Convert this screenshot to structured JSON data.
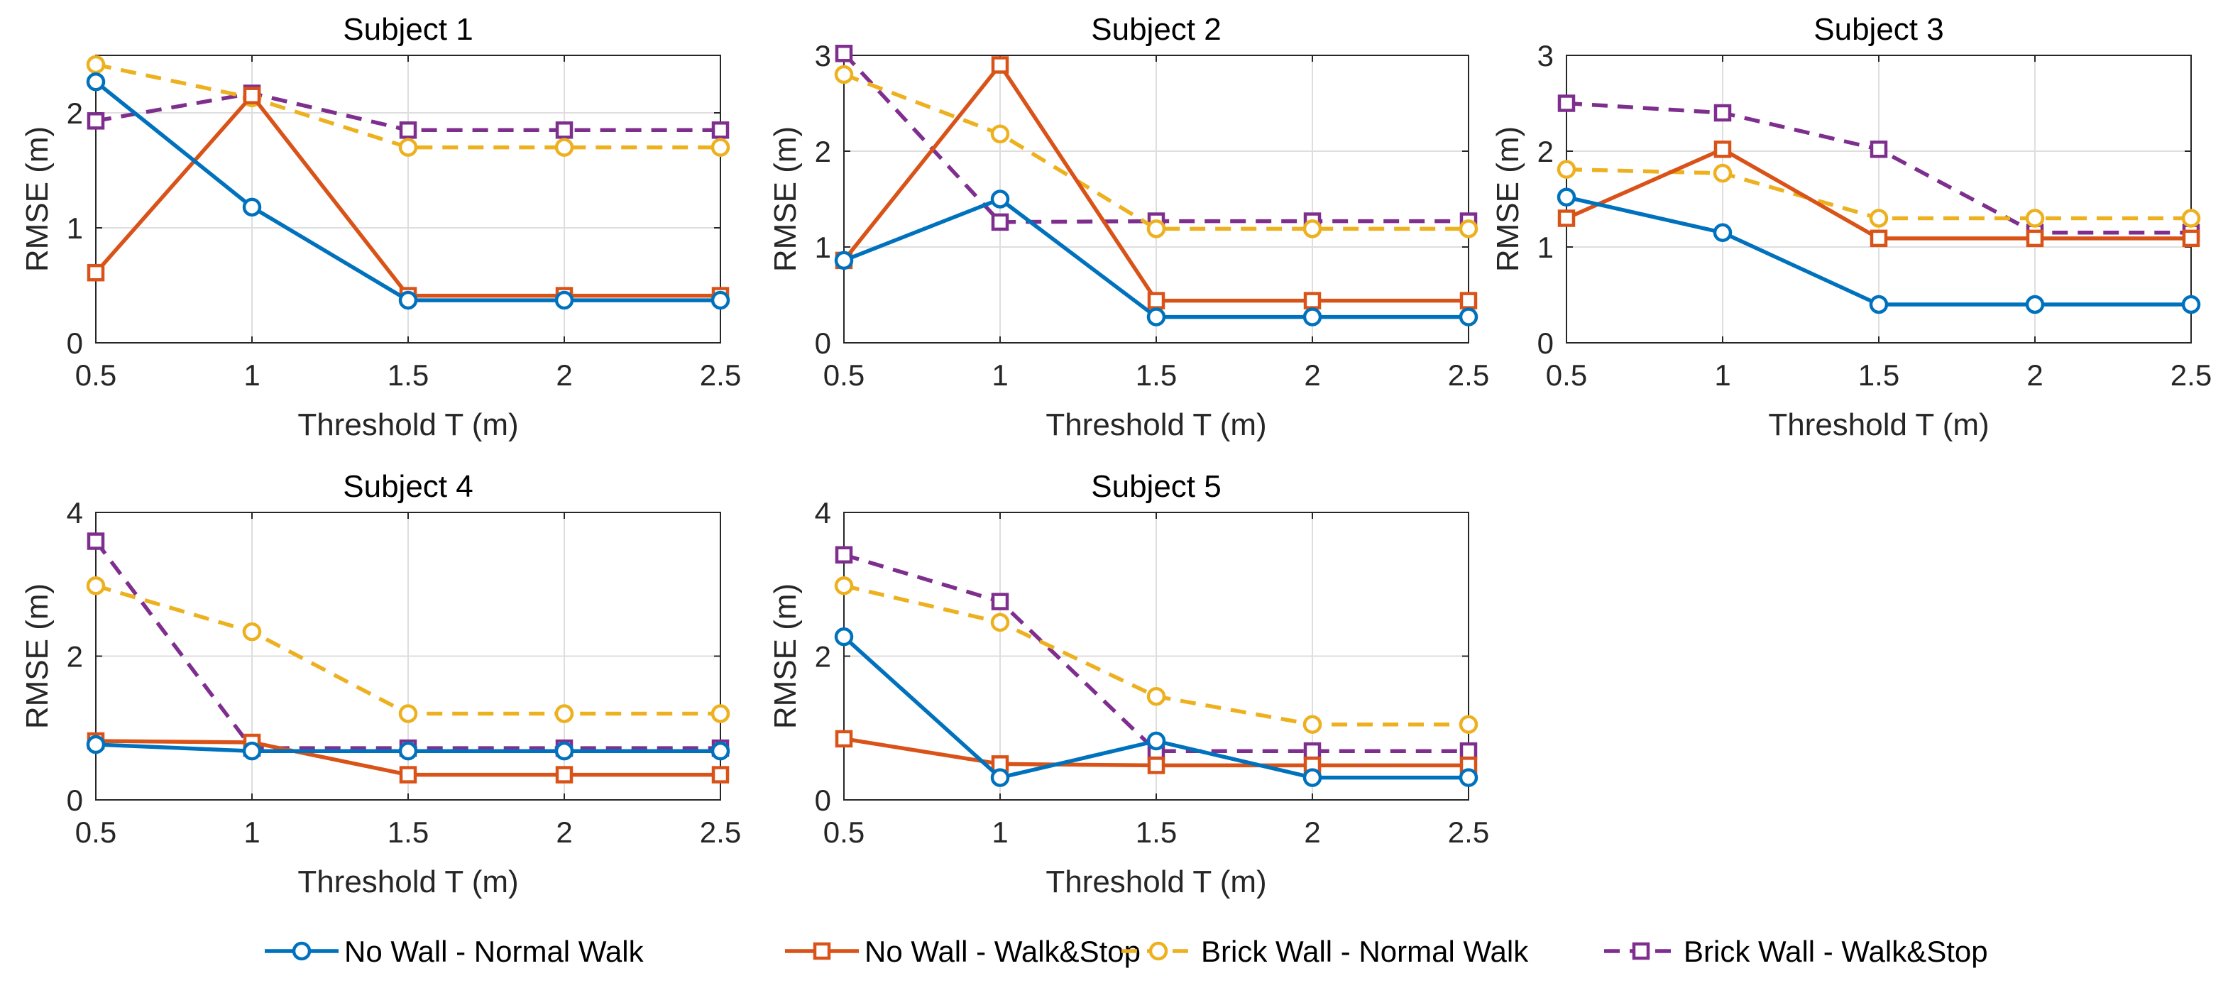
{
  "chart_data": {
    "type": "line",
    "x": [
      0.5,
      1,
      1.5,
      2,
      2.5
    ],
    "xlabel": "Threshold T (m)",
    "ylabel": "RMSE (m)",
    "xlim": [
      0.5,
      2.5
    ],
    "xticks": [
      0.5,
      1,
      1.5,
      2,
      2.5
    ],
    "xtick_labels": [
      "0.5",
      "1",
      "1.5",
      "2",
      "2.5"
    ],
    "grid": true,
    "legend_position": "bottom-center",
    "legend": [
      {
        "name": "No Wall - Normal Walk",
        "color": "#0072BD",
        "dash": "solid",
        "marker": "circle"
      },
      {
        "name": "No Wall - Walk&Stop",
        "color": "#D95319",
        "dash": "solid",
        "marker": "square"
      },
      {
        "name": "Brick Wall - Normal Walk",
        "color": "#EDB120",
        "dash": "dashed",
        "marker": "circle"
      },
      {
        "name": "Brick Wall - Walk&Stop",
        "color": "#7E2F8E",
        "dash": "dashed",
        "marker": "square"
      }
    ],
    "subplots": [
      {
        "title": "Subject 1",
        "ylim": [
          0,
          2.5
        ],
        "yticks": [
          0,
          1,
          2
        ],
        "ytick_labels": [
          "0",
          "1",
          "2"
        ],
        "series": [
          {
            "name": "No Wall - Normal Walk",
            "values": [
              2.27,
              1.18,
              0.37,
              0.37,
              0.37
            ]
          },
          {
            "name": "No Wall - Walk&Stop",
            "values": [
              0.61,
              2.15,
              0.41,
              0.41,
              0.41
            ]
          },
          {
            "name": "Brick Wall - Normal Walk",
            "values": [
              2.42,
              2.13,
              1.7,
              1.7,
              1.7
            ]
          },
          {
            "name": "Brick Wall - Walk&Stop",
            "values": [
              1.93,
              2.17,
              1.85,
              1.85,
              1.85
            ]
          }
        ]
      },
      {
        "title": "Subject 2",
        "ylim": [
          0,
          3
        ],
        "yticks": [
          0,
          1,
          2,
          3
        ],
        "ytick_labels": [
          "0",
          "1",
          "2",
          "3"
        ],
        "series": [
          {
            "name": "No Wall - Normal Walk",
            "values": [
              0.86,
              1.5,
              0.27,
              0.27,
              0.27
            ]
          },
          {
            "name": "No Wall - Walk&Stop",
            "values": [
              0.86,
              2.9,
              0.44,
              0.44,
              0.44
            ]
          },
          {
            "name": "Brick Wall - Normal Walk",
            "values": [
              2.8,
              2.18,
              1.19,
              1.19,
              1.19
            ]
          },
          {
            "name": "Brick Wall - Walk&Stop",
            "values": [
              3.02,
              1.26,
              1.27,
              1.27,
              1.27
            ]
          }
        ]
      },
      {
        "title": "Subject 3",
        "ylim": [
          0,
          3
        ],
        "yticks": [
          0,
          1,
          2,
          3
        ],
        "ytick_labels": [
          "0",
          "1",
          "2",
          "3"
        ],
        "series": [
          {
            "name": "No Wall - Normal Walk",
            "values": [
              1.52,
              1.15,
              0.4,
              0.4,
              0.4
            ]
          },
          {
            "name": "No Wall - Walk&Stop",
            "values": [
              1.3,
              2.02,
              1.09,
              1.09,
              1.09
            ]
          },
          {
            "name": "Brick Wall - Normal Walk",
            "values": [
              1.81,
              1.77,
              1.3,
              1.3,
              1.3
            ]
          },
          {
            "name": "Brick Wall - Walk&Stop",
            "values": [
              2.5,
              2.4,
              2.02,
              1.15,
              1.15
            ]
          }
        ]
      },
      {
        "title": "Subject 4",
        "ylim": [
          0,
          4
        ],
        "yticks": [
          0,
          2,
          4
        ],
        "ytick_labels": [
          "0",
          "2",
          "4"
        ],
        "series": [
          {
            "name": "No Wall - Normal Walk",
            "values": [
              0.77,
              0.68,
              0.68,
              0.68,
              0.68
            ]
          },
          {
            "name": "No Wall - Walk&Stop",
            "values": [
              0.82,
              0.8,
              0.35,
              0.35,
              0.35
            ]
          },
          {
            "name": "Brick Wall - Normal Walk",
            "values": [
              2.98,
              2.34,
              1.2,
              1.2,
              1.2
            ]
          },
          {
            "name": "Brick Wall - Walk&Stop",
            "values": [
              3.6,
              0.72,
              0.72,
              0.72,
              0.72
            ]
          }
        ]
      },
      {
        "title": "Subject 5",
        "ylim": [
          0,
          4
        ],
        "yticks": [
          0,
          2,
          4
        ],
        "ytick_labels": [
          "0",
          "2",
          "4"
        ],
        "series": [
          {
            "name": "No Wall - Normal Walk",
            "values": [
              2.27,
              0.31,
              0.82,
              0.31,
              0.31
            ]
          },
          {
            "name": "No Wall - Walk&Stop",
            "values": [
              0.85,
              0.5,
              0.48,
              0.48,
              0.48
            ]
          },
          {
            "name": "Brick Wall - Normal Walk",
            "values": [
              2.98,
              2.47,
              1.44,
              1.05,
              1.05
            ]
          },
          {
            "name": "Brick Wall - Walk&Stop",
            "values": [
              3.41,
              2.76,
              0.68,
              0.68,
              0.68
            ]
          }
        ]
      }
    ]
  }
}
